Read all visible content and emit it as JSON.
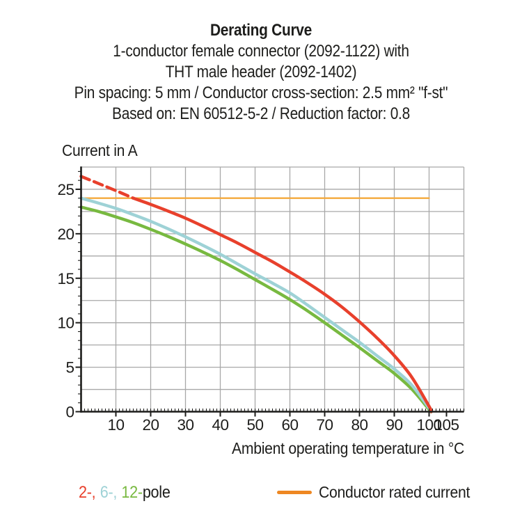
{
  "chart_data": {
    "type": "line",
    "title": "Derating Curve",
    "subtitle_lines": [
      "1-conductor female connector (2092-1122) with",
      "THT male header (2092-1402)",
      "Pin spacing: 5 mm / Conductor cross-section: 2.5 mm² \"f-st\"",
      "Based on: EN 60512-5-2 / Reduction factor: 0.8"
    ],
    "ylabel": "Current in A",
    "xlabel": "Ambient operating temperature in °C",
    "xlim": [
      0,
      110
    ],
    "ylim": [
      0,
      27.5
    ],
    "x_ticks": [
      10,
      20,
      30,
      40,
      50,
      60,
      70,
      80,
      90,
      100,
      105
    ],
    "y_ticks": [
      0,
      5,
      10,
      15,
      20,
      25
    ],
    "x_grid_step": 10,
    "y_grid_step": 2.5,
    "x_minor_step": 1,
    "y_minor_step": 1,
    "grid": true,
    "legend_position": "bottom",
    "colors": {
      "grid": "#a8a8a8",
      "axis": "#1d1d1b",
      "text": "#1d1d1b"
    },
    "series": [
      {
        "name": "2-pole dashed overload",
        "color": "#e8402c",
        "width": 4.4,
        "dash": "13 7",
        "points": [
          [
            0,
            26.45
          ],
          [
            5,
            25.65
          ],
          [
            10,
            24.85
          ],
          [
            15,
            24
          ]
        ]
      },
      {
        "name": "2-pole",
        "color": "#e8402c",
        "width": 4.4,
        "points": [
          [
            15,
            24
          ],
          [
            20,
            23.3
          ],
          [
            25,
            22.55
          ],
          [
            30,
            21.75
          ],
          [
            35,
            20.85
          ],
          [
            40,
            19.9
          ],
          [
            45,
            18.95
          ],
          [
            50,
            17.9
          ],
          [
            55,
            16.85
          ],
          [
            60,
            15.7
          ],
          [
            65,
            14.5
          ],
          [
            70,
            13.2
          ],
          [
            75,
            11.75
          ],
          [
            80,
            10.1
          ],
          [
            85,
            8.3
          ],
          [
            90,
            6.3
          ],
          [
            95,
            3.9
          ],
          [
            100,
            0.6
          ],
          [
            100.6,
            0
          ]
        ]
      },
      {
        "name": "6-pole",
        "color": "#9ed2d6",
        "width": 4.4,
        "points": [
          [
            0,
            24
          ],
          [
            5,
            23.45
          ],
          [
            10,
            22.85
          ],
          [
            15,
            22.15
          ],
          [
            20,
            21.4
          ],
          [
            25,
            20.55
          ],
          [
            30,
            19.65
          ],
          [
            35,
            18.7
          ],
          [
            40,
            17.7
          ],
          [
            45,
            16.6
          ],
          [
            50,
            15.5
          ],
          [
            55,
            14.45
          ],
          [
            60,
            13.35
          ],
          [
            65,
            12.0
          ],
          [
            70,
            10.6
          ],
          [
            75,
            9.2
          ],
          [
            80,
            7.8
          ],
          [
            85,
            6.3
          ],
          [
            90,
            4.8
          ],
          [
            95,
            3.0
          ],
          [
            100,
            0.4
          ],
          [
            100.6,
            0
          ]
        ]
      },
      {
        "name": "12-pole",
        "color": "#78b940",
        "width": 4.4,
        "points": [
          [
            0,
            23
          ],
          [
            5,
            22.5
          ],
          [
            10,
            21.9
          ],
          [
            15,
            21.25
          ],
          [
            20,
            20.5
          ],
          [
            25,
            19.7
          ],
          [
            30,
            18.85
          ],
          [
            35,
            17.95
          ],
          [
            40,
            17.0
          ],
          [
            45,
            15.95
          ],
          [
            50,
            14.85
          ],
          [
            55,
            13.75
          ],
          [
            60,
            12.6
          ],
          [
            65,
            11.35
          ],
          [
            70,
            10.0
          ],
          [
            75,
            8.6
          ],
          [
            80,
            7.2
          ],
          [
            85,
            5.75
          ],
          [
            90,
            4.3
          ],
          [
            95,
            2.55
          ],
          [
            100,
            0.25
          ],
          [
            100.6,
            0
          ]
        ]
      },
      {
        "name": "Conductor rated current",
        "color": "#f5a93c",
        "width": 2.3,
        "points": [
          [
            0,
            24
          ],
          [
            100,
            24
          ]
        ]
      }
    ]
  },
  "legend": {
    "pole_items": [
      {
        "text": "2-,",
        "color": "#e8402c"
      },
      {
        "text": "6-,",
        "color": "#9ed2d6"
      },
      {
        "text": "12-",
        "color": "#78b940"
      }
    ],
    "pole_suffix": "pole",
    "rated": {
      "label": "Conductor rated current",
      "color": "#ee8722"
    }
  }
}
